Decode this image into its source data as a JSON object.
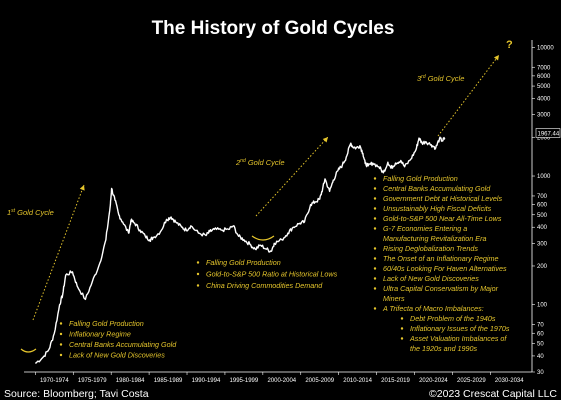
{
  "chart_data": {
    "type": "line",
    "title": "The History of Gold Cycles",
    "y_scale": "log",
    "ylim": [
      30,
      11000
    ],
    "y_ticks": [
      10000,
      7000,
      6000,
      5000,
      4000,
      3000,
      2000,
      1000,
      700,
      600,
      500,
      400,
      300,
      200,
      100,
      70,
      60,
      50,
      40,
      30
    ],
    "x_tick_labels": [
      "1970-1974",
      "1975-1979",
      "1980-1984",
      "1985-1989",
      "1990-1994",
      "1995-1999",
      "2000-2004",
      "2005-2009",
      "2010-2014",
      "2015-2019",
      "2020-2024",
      "2025-2029",
      "2030-2034"
    ],
    "xlim": [
      1968.5,
      2035.5
    ],
    "last_value_label": "1967.44",
    "series": [
      {
        "x": [
          1970.0,
          1971.0,
          1971.8,
          1972.5,
          1973.2,
          1973.6,
          1974.0,
          1974.9,
          1975.5,
          1976.6,
          1977.5,
          1978.5,
          1979.3,
          1979.9,
          1980.05,
          1980.5,
          1981.0,
          1981.5,
          1982.3,
          1982.6,
          1983.1,
          1983.8,
          1984.5,
          1985.1,
          1985.5,
          1986.5,
          1987.3,
          1987.9,
          1988.5,
          1989.3,
          1989.9,
          1990.5,
          1991.5,
          1992.5,
          1993.0,
          1993.6,
          1994.5,
          1995.5,
          1996.1,
          1996.8,
          1997.5,
          1998.3,
          1999.0,
          1999.7,
          2000.5,
          2001.1,
          2001.5,
          2002.5,
          2003.3,
          2004.0,
          2004.9,
          2005.5,
          2006.3,
          2006.9,
          2007.5,
          2007.9,
          2008.2,
          2008.8,
          2009.3,
          2009.9,
          2010.5,
          2011.0,
          2011.6,
          2011.8,
          2012.3,
          2012.8,
          2013.2,
          2013.5,
          2013.9,
          2014.5,
          2015.3,
          2015.9,
          2016.5,
          2016.9,
          2017.5,
          2018.2,
          2018.7,
          2019.5,
          2020.2,
          2020.6,
          2021.0,
          2021.5,
          2022.2,
          2022.8,
          2023.3,
          2023.7,
          2024.0
        ],
        "values": [
          35,
          39,
          45,
          60,
          100,
          120,
          170,
          180,
          140,
          110,
          150,
          210,
          320,
          600,
          800,
          650,
          500,
          440,
          360,
          450,
          430,
          380,
          340,
          320,
          330,
          370,
          460,
          480,
          440,
          400,
          380,
          410,
          360,
          345,
          370,
          385,
          380,
          385,
          410,
          340,
          320,
          295,
          270,
          290,
          270,
          260,
          300,
          320,
          360,
          400,
          430,
          440,
          600,
          630,
          660,
          800,
          950,
          760,
          930,
          1100,
          1220,
          1400,
          1800,
          1700,
          1650,
          1720,
          1500,
          1250,
          1200,
          1260,
          1180,
          1060,
          1280,
          1150,
          1260,
          1320,
          1180,
          1350,
          1600,
          1970,
          1800,
          1850,
          1750,
          1650,
          1950,
          1880,
          1967
        ]
      }
    ]
  },
  "cycles": [
    {
      "label": "Gold Cycle",
      "ordinal": "1",
      "ordinal_suffix": "st"
    },
    {
      "label": "Gold Cycle",
      "ordinal": "2",
      "ordinal_suffix": "nd"
    },
    {
      "label": "Gold Cycle",
      "ordinal": "3",
      "ordinal_suffix": "rd"
    }
  ],
  "question_mark": "?",
  "notes_cycle1": [
    "Falling Gold Production",
    "Inflationary Regime",
    "Central Banks Accumulating Gold",
    "Lack of New Gold Discoveries"
  ],
  "notes_cycle2": [
    "Falling Gold Production",
    "Gold-to-S&P 500 Ratio at Historical Lows",
    "China Driving Commodities Demand"
  ],
  "notes_cycle3": [
    {
      "lines": [
        "Falling Gold Production"
      ]
    },
    {
      "lines": [
        "Central Banks Accumulating Gold"
      ]
    },
    {
      "lines": [
        "Government Debt at Historical Levels"
      ]
    },
    {
      "lines": [
        "Unsustainably High Fiscal Deficits"
      ]
    },
    {
      "lines": [
        "Gold-to-S&P 500 Near All-Time Lows"
      ]
    },
    {
      "lines": [
        "G-7 Economies Entering a",
        "Manufacturing Revitalization Era"
      ]
    },
    {
      "lines": [
        "Rising Deglobalization Trends"
      ]
    },
    {
      "lines": [
        "The Onset of an Inflationary Regime"
      ]
    },
    {
      "lines": [
        "60/40s Looking For Haven Alternatives"
      ]
    },
    {
      "lines": [
        "Lack of New Gold Discoveries"
      ]
    },
    {
      "lines": [
        "Ultra Capital Conservatism by Major",
        "Miners"
      ]
    },
    {
      "lines": [
        "A Trifecta of Macro Imbalances:"
      ]
    }
  ],
  "notes_cycle3_sub": [
    {
      "lines": [
        "Debt Problem of the 1940s"
      ]
    },
    {
      "lines": [
        "Inflationary Issues of the 1970s"
      ]
    },
    {
      "lines": [
        "Asset Valuation Imbalances of",
        "the 1920s and 1990s"
      ]
    }
  ],
  "footer": {
    "source": "Source: Bloomberg; Tavi Costa",
    "copyright": "©2023 Crescat Capital LLC"
  },
  "colors": {
    "background": "#000000",
    "line": "#ffffff",
    "accent": "#e6c62c"
  }
}
